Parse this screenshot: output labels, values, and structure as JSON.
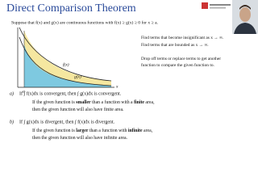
{
  "slide": {
    "title": "Direct Comparison Theorem",
    "hypothesis": "Suppose that f(x) and g(x) are continuous functions with f(x) ≥ g(x) ≥ 0 for x ≥ a.",
    "graph": {
      "f_label": "f(x)",
      "g_label": "g(x)",
      "x_label": "x",
      "a_label": "a"
    },
    "notes": [
      "Find terms that become insignificant as x → ∞.",
      "Find terms that are bounded as x → ∞.",
      "Drop off terms or replace terms to get another",
      "function to compare the given function to."
    ],
    "cases": [
      {
        "marker": "a)",
        "statement": "If ∫ f(x)dx is convergent, then ∫ g(x)dx is convergent.",
        "explanation": [
          [
            "If the given function is ",
            "smaller",
            " than a function with a ",
            "finite",
            " area,"
          ],
          [
            "then the given function will also have finite area."
          ]
        ]
      },
      {
        "marker": "b)",
        "statement": "If ∫ g(x)dx is divergent, then ∫ f(x)dx is divergent.",
        "explanation": [
          [
            "If the given function is ",
            "larger",
            " than a function with ",
            "infinite",
            " area,"
          ],
          [
            "then the given function will also have infinite area."
          ]
        ]
      }
    ]
  }
}
